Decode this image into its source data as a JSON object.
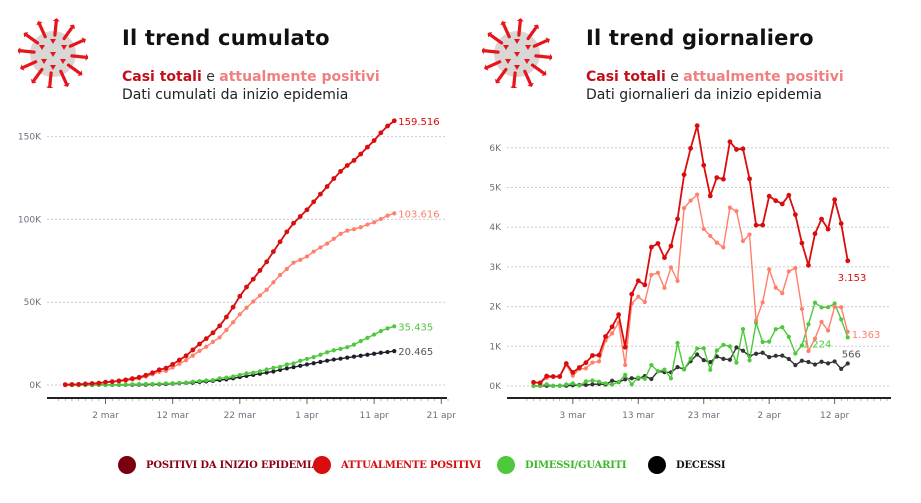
{
  "colors": {
    "positivi_inizio": "#7a0010",
    "totali_line": "#d90d0d",
    "attualmente_positivi": "#ff7f6a",
    "dimessi": "#4ec83c",
    "decessi": "#1e1e28",
    "grid": "#c8ccd4",
    "axis": "#222222"
  },
  "left_panel": {
    "icon": "virus-icon",
    "title": "Il trend cumulato",
    "subtitle_totali": "Casi totali",
    "subtitle_e": " e ",
    "subtitle_positivi": "attualmente positivi",
    "subtitle_line2": "Dati cumulati da inizio epidemia"
  },
  "right_panel": {
    "icon": "virus-icon",
    "title": "Il trend giornaliero",
    "subtitle_totali": "Casi totali",
    "subtitle_e": " e ",
    "subtitle_positivi": "attualmente positivi",
    "subtitle_line2": "Dati giornalieri da inizio epidemia"
  },
  "legend": [
    {
      "label": "POSITIVI DA INIZIO EPIDEMIA",
      "color": "#7a0010",
      "text_color": "#8b0015"
    },
    {
      "label": "ATTUALMENTE POSITIVI",
      "color": "#d90d0d",
      "text_color": "#d90d0d"
    },
    {
      "label": "DIMESSI/GUARITI",
      "color": "#4ec83c",
      "text_color": "#3db82a"
    },
    {
      "label": "DECESSI",
      "color": "#000000",
      "text_color": "#111111"
    }
  ],
  "chart_data": [
    {
      "type": "line",
      "title": "Il trend cumulato",
      "subtitle": "Dati cumulati da inizio epidemia",
      "x_start": "24 feb",
      "x_end": "13 apr",
      "xlim_days": [
        0,
        58
      ],
      "x_ticks": [
        {
          "day": 7,
          "label": "2 mar"
        },
        {
          "day": 17,
          "label": "12 mar"
        },
        {
          "day": 27,
          "label": "22 mar"
        },
        {
          "day": 37,
          "label": "1 apr"
        },
        {
          "day": 47,
          "label": "11 apr"
        },
        {
          "day": 57,
          "label": "21 apr"
        }
      ],
      "ylim": [
        0,
        160000
      ],
      "y_ticks": [
        {
          "value": 0,
          "label": "0K"
        },
        {
          "value": 50000,
          "label": "50K"
        },
        {
          "value": 100000,
          "label": "100K"
        },
        {
          "value": 150000,
          "label": "150K"
        }
      ],
      "grid": true,
      "series": [
        {
          "name": "Casi totali",
          "color": "#d90d0d",
          "end_label": "159.516",
          "values": [
            229,
            322,
            400,
            650,
            888,
            1128,
            1694,
            2036,
            2502,
            3089,
            3858,
            4636,
            5883,
            7375,
            9172,
            10149,
            12462,
            15113,
            17660,
            21157,
            24747,
            27980,
            31506,
            35713,
            41035,
            47021,
            53578,
            59138,
            63927,
            69176,
            74386,
            80539,
            86498,
            92472,
            97689,
            101739,
            105792,
            110574,
            115242,
            119827,
            124632,
            128948,
            132547,
            135586,
            139422,
            143626,
            147577,
            152271,
            156363,
            159516
          ]
        },
        {
          "name": "Attualmente positivi",
          "color": "#ff7f6a",
          "end_label": "103.616",
          "values": [
            221,
            311,
            385,
            588,
            821,
            1049,
            1577,
            1835,
            2263,
            2706,
            3296,
            3916,
            5061,
            6387,
            7985,
            8514,
            10590,
            12839,
            14955,
            17750,
            20603,
            23073,
            26062,
            28710,
            33190,
            37860,
            42681,
            46638,
            50418,
            54030,
            57521,
            62013,
            66414,
            70065,
            73880,
            75528,
            77635,
            80572,
            83049,
            85388,
            88274,
            91246,
            93187,
            94067,
            95262,
            96877,
            98273,
            100269,
            102253,
            103616
          ]
        },
        {
          "name": "Dimessi/Guariti",
          "color": "#4ec83c",
          "end_label": "35.435",
          "values": [
            1,
            1,
            3,
            45,
            46,
            46,
            83,
            149,
            160,
            276,
            414,
            523,
            589,
            622,
            724,
            1004,
            1045,
            1258,
            1439,
            1966,
            2335,
            2749,
            2941,
            4025,
            4440,
            5129,
            6072,
            7024,
            7432,
            8326,
            9362,
            10361,
            10950,
            12384,
            13030,
            14620,
            15729,
            16847,
            18278,
            19758,
            20996,
            21815,
            22837,
            24392,
            26491,
            28470,
            30455,
            32534,
            34211,
            35435
          ]
        },
        {
          "name": "Decessi",
          "color": "#1e1e28",
          "end_label": "20.465",
          "values": [
            7,
            10,
            12,
            17,
            21,
            29,
            34,
            52,
            79,
            107,
            148,
            197,
            233,
            366,
            463,
            631,
            827,
            1016,
            1266,
            1441,
            1809,
            2158,
            2503,
            2978,
            3405,
            4032,
            4825,
            5476,
            6077,
            6820,
            7503,
            8165,
            9134,
            10023,
            10779,
            11591,
            12428,
            13155,
            13915,
            14681,
            15362,
            15887,
            16523,
            17127,
            17669,
            18279,
            18849,
            19468,
            19899,
            20465
          ]
        }
      ]
    },
    {
      "type": "line",
      "title": "Il trend giornaliero",
      "subtitle": "Dati giornalieri da inizio epidemia",
      "x_start": "25 feb",
      "x_end": "13 apr",
      "xlim_days": [
        0,
        55
      ],
      "x_ticks": [
        {
          "day": 7,
          "label": "3 mar"
        },
        {
          "day": 17,
          "label": "13 mar"
        },
        {
          "day": 27,
          "label": "23 mar"
        },
        {
          "day": 37,
          "label": "2 apr"
        },
        {
          "day": 47,
          "label": "12 apr"
        }
      ],
      "ylim": [
        0,
        6700
      ],
      "y_ticks": [
        {
          "value": 0,
          "label": "0K"
        },
        {
          "value": 1000,
          "label": "1K"
        },
        {
          "value": 2000,
          "label": "2K"
        },
        {
          "value": 3000,
          "label": "3K"
        },
        {
          "value": 4000,
          "label": "4K"
        },
        {
          "value": 5000,
          "label": "5K"
        },
        {
          "value": 6000,
          "label": "6K"
        }
      ],
      "grid": true,
      "series": [
        {
          "name": "Casi totali",
          "color": "#d90d0d",
          "end_label": "3.153",
          "values": [
            93,
            78,
            250,
            238,
            240,
            566,
            342,
            466,
            587,
            769,
            778,
            1247,
            1492,
            1797,
            977,
            2313,
            2651,
            2547,
            3497,
            3590,
            3233,
            3526,
            4207,
            5322,
            5986,
            6557,
            5560,
            4789,
            5249,
            5210,
            6153,
            5959,
            5974,
            5217,
            4050,
            4053,
            4782,
            4668,
            4585,
            4805,
            4316,
            3599,
            3039,
            3836,
            4204,
            3951,
            4694,
            4092,
            3153
          ]
        },
        {
          "name": "Attualmente positivi",
          "color": "#ff7f6a",
          "end_label": "1.363",
          "values": [
            90,
            74,
            203,
            233,
            228,
            528,
            258,
            428,
            443,
            590,
            620,
            1145,
            1326,
            1598,
            529,
            2076,
            2249,
            2116,
            2795,
            2853,
            2470,
            2989,
            2648,
            4480,
            4670,
            4821,
            3957,
            3780,
            3612,
            3491,
            4492,
            4401,
            3651,
            3815,
            1648,
            2107,
            2937,
            2477,
            2339,
            2886,
            2972,
            1941,
            880,
            1195,
            1615,
            1396,
            1996,
            1984,
            1363
          ]
        },
        {
          "name": "Dimessi/Guariti",
          "color": "#4ec83c",
          "end_label": "1.224",
          "values": [
            0,
            2,
            42,
            1,
            0,
            37,
            66,
            11,
            116,
            138,
            109,
            66,
            33,
            102,
            280,
            41,
            213,
            181,
            527,
            369,
            414,
            192,
            1084,
            415,
            689,
            943,
            952,
            408,
            894,
            1036,
            999,
            589,
            1434,
            646,
            1590,
            1109,
            1118,
            1431,
            1480,
            1238,
            819,
            1022,
            1555,
            2099,
            1979,
            1985,
            2079,
            1677,
            1224
          ]
        },
        {
          "name": "Decessi",
          "color": "#333333",
          "end_label": "566",
          "values": [
            3,
            2,
            5,
            4,
            8,
            5,
            18,
            27,
            28,
            41,
            49,
            36,
            133,
            97,
            168,
            196,
            189,
            250,
            175,
            368,
            349,
            345,
            475,
            427,
            627,
            793,
            651,
            601,
            743,
            683,
            662,
            969,
            889,
            756,
            812,
            837,
            727,
            760,
            766,
            681,
            525,
            636,
            604,
            542,
            610,
            570,
            619,
            431,
            566
          ]
        }
      ]
    }
  ]
}
